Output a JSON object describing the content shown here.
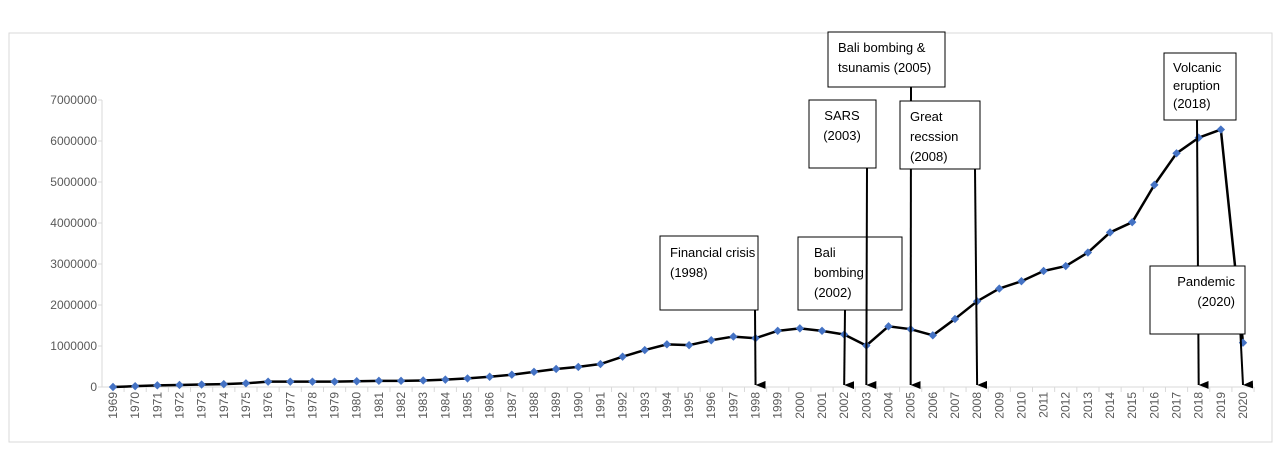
{
  "chart_data": {
    "type": "line",
    "title": "",
    "xlabel": "",
    "ylabel": "",
    "ylim": [
      0,
      7000000
    ],
    "yticks": [
      0,
      1000000,
      2000000,
      3000000,
      4000000,
      5000000,
      6000000,
      7000000
    ],
    "ytick_labels": [
      "0",
      "1000000",
      "2000000",
      "3000000",
      "4000000",
      "5000000",
      "6000000",
      "7000000"
    ],
    "grid": false,
    "legend": "none",
    "x": [
      "1969",
      "1970",
      "1971",
      "1972",
      "1973",
      "1974",
      "1975",
      "1976",
      "1977",
      "1978",
      "1979",
      "1980",
      "1981",
      "1982",
      "1983",
      "1984",
      "1985",
      "1986",
      "1987",
      "1988",
      "1989",
      "1990",
      "1991",
      "1992",
      "1993",
      "1994",
      "1995",
      "1996",
      "1997",
      "1998",
      "1999",
      "2000",
      "2001",
      "2002",
      "2003",
      "2004",
      "2005",
      "2006",
      "2007",
      "2008",
      "2009",
      "2010",
      "2011",
      "2012",
      "2013",
      "2014",
      "2015",
      "2016",
      "2017",
      "2018",
      "2019",
      "2020"
    ],
    "series": [
      {
        "name": "",
        "color": "#000000",
        "marker_color": "#4472C4",
        "values": [
          0,
          20000,
          40000,
          50000,
          60000,
          70000,
          90000,
          130000,
          130000,
          130000,
          130000,
          140000,
          150000,
          150000,
          160000,
          180000,
          210000,
          250000,
          300000,
          370000,
          440000,
          490000,
          560000,
          740000,
          900000,
          1040000,
          1020000,
          1140000,
          1230000,
          1190000,
          1370000,
          1430000,
          1370000,
          1280000,
          1010000,
          1480000,
          1410000,
          1260000,
          1660000,
          2090000,
          2400000,
          2580000,
          2830000,
          2950000,
          3280000,
          3770000,
          4020000,
          4930000,
          5700000,
          6080000,
          6280000,
          1080000
        ]
      }
    ],
    "annotations": [
      {
        "id": "financial",
        "lines": [
          "Financial crisis",
          "(1998)"
        ],
        "arrow_to": "1998"
      },
      {
        "id": "bali2002",
        "lines": [
          "Bali",
          "bombing",
          "(2002)"
        ],
        "arrow_to": "2002"
      },
      {
        "id": "sars",
        "lines": [
          "SARS",
          "(2003)"
        ],
        "arrow_to": "2003"
      },
      {
        "id": "bali2005",
        "lines": [
          "Bali bombing &",
          "tsunamis (2005)"
        ],
        "arrow_to": "2005"
      },
      {
        "id": "recession",
        "lines": [
          "Great",
          "recssion",
          "(2008)"
        ],
        "arrow_to": "2008"
      },
      {
        "id": "volcanic",
        "lines": [
          "Volcanic",
          "eruption",
          "(2018)"
        ],
        "arrow_to": "2018"
      },
      {
        "id": "pandemic",
        "lines": [
          "Pandemic",
          "(2020)"
        ],
        "arrow_to": "2020"
      }
    ]
  }
}
